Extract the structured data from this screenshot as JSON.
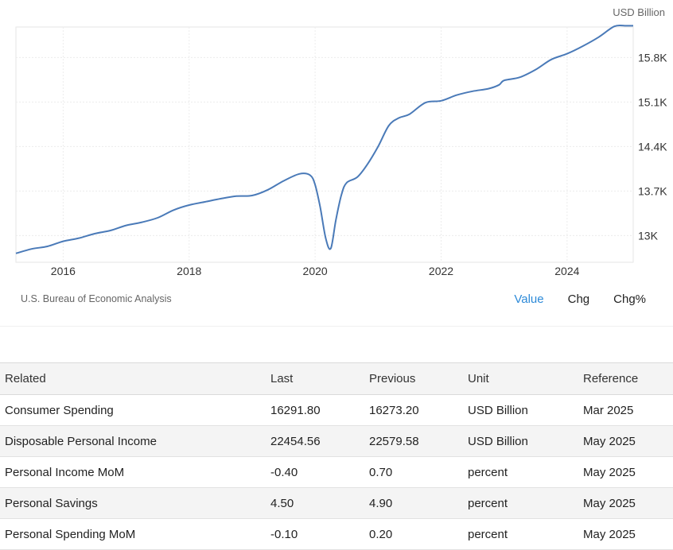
{
  "chart": {
    "unit_label": "USD Billion",
    "source": "U.S. Bureau of Economic Analysis",
    "toggles": [
      {
        "label": "Value",
        "active": true
      },
      {
        "label": "Chg",
        "active": false
      },
      {
        "label": "Chg%",
        "active": false
      }
    ]
  },
  "chart_data": {
    "type": "line",
    "title": "",
    "xlabel": "",
    "ylabel": "USD Billion",
    "color": "#4a7ab8",
    "grid": true,
    "x_ticks": [
      "2016",
      "2018",
      "2020",
      "2022",
      "2024"
    ],
    "y_ticks": [
      "13K",
      "13.7K",
      "14.4K",
      "15.1K",
      "15.8K"
    ],
    "xlim": [
      2015.25,
      2025.05
    ],
    "ylim": [
      12.58,
      16.28
    ],
    "series": [
      {
        "name": "",
        "x": [
          2015.25,
          2015.5,
          2015.75,
          2016.0,
          2016.25,
          2016.5,
          2016.75,
          2017.0,
          2017.25,
          2017.5,
          2017.75,
          2018.0,
          2018.25,
          2018.5,
          2018.75,
          2019.0,
          2019.25,
          2019.5,
          2019.75,
          2019.92,
          2020.0,
          2020.08,
          2020.17,
          2020.25,
          2020.33,
          2020.42,
          2020.5,
          2020.67,
          2020.83,
          2021.0,
          2021.17,
          2021.33,
          2021.5,
          2021.75,
          2022.0,
          2022.25,
          2022.5,
          2022.75,
          2022.92,
          2023.0,
          2023.25,
          2023.5,
          2023.75,
          2024.0,
          2024.25,
          2024.5,
          2024.75,
          2024.92,
          2025.05
        ],
        "values": [
          12.72,
          12.79,
          12.83,
          12.91,
          12.96,
          13.03,
          13.08,
          13.16,
          13.21,
          13.28,
          13.4,
          13.48,
          13.53,
          13.58,
          13.62,
          13.63,
          13.72,
          13.86,
          13.97,
          13.95,
          13.8,
          13.45,
          12.95,
          12.8,
          13.25,
          13.65,
          13.83,
          13.92,
          14.12,
          14.4,
          14.73,
          14.85,
          14.91,
          15.09,
          15.12,
          15.21,
          15.27,
          15.31,
          15.37,
          15.44,
          15.49,
          15.61,
          15.77,
          15.86,
          15.98,
          16.12,
          16.29,
          16.3,
          16.3
        ]
      }
    ]
  },
  "related": {
    "headers": [
      "Related",
      "Last",
      "Previous",
      "Unit",
      "Reference"
    ],
    "rows": [
      {
        "name": "Consumer Spending",
        "last": "16291.80",
        "previous": "16273.20",
        "unit": "USD Billion",
        "reference": "Mar 2025"
      },
      {
        "name": "Disposable Personal Income",
        "last": "22454.56",
        "previous": "22579.58",
        "unit": "USD Billion",
        "reference": "May 2025"
      },
      {
        "name": "Personal Income MoM",
        "last": "-0.40",
        "previous": "0.70",
        "unit": "percent",
        "reference": "May 2025"
      },
      {
        "name": "Personal Savings",
        "last": "4.50",
        "previous": "4.90",
        "unit": "percent",
        "reference": "May 2025"
      },
      {
        "name": "Personal Spending MoM",
        "last": "-0.10",
        "previous": "0.20",
        "unit": "percent",
        "reference": "May 2025"
      }
    ]
  }
}
